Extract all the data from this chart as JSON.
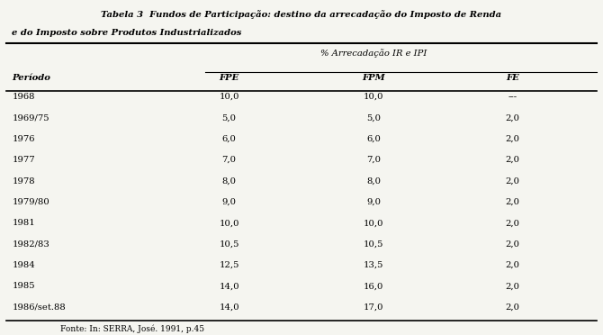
{
  "title_line1": "Tabela 3  Fundos de Participação: destino da arrecadação do Imposto de Renda",
  "title_line2": "e do Imposto sobre Produtos Industrializados",
  "col_header_span": "% Arrecadação IR e IPI",
  "col_headers": [
    "Período",
    "FPE",
    "FPM",
    "FE"
  ],
  "rows": [
    [
      "1968",
      "10,0",
      "10,0",
      "---"
    ],
    [
      "1969/75",
      "5,0",
      "5,0",
      "2,0"
    ],
    [
      "1976",
      "6,0",
      "6,0",
      "2,0"
    ],
    [
      "1977",
      "7,0",
      "7,0",
      "2,0"
    ],
    [
      "1978",
      "8,0",
      "8,0",
      "2,0"
    ],
    [
      "1979/80",
      "9,0",
      "9,0",
      "2,0"
    ],
    [
      "1981",
      "10,0",
      "10,0",
      "2,0"
    ],
    [
      "1982/83",
      "10,5",
      "10,5",
      "2,0"
    ],
    [
      "1984",
      "12,5",
      "13,5",
      "2,0"
    ],
    [
      "1985",
      "14,0",
      "16,0",
      "2,0"
    ],
    [
      "1986/set.88",
      "14,0",
      "17,0",
      "2,0"
    ]
  ],
  "footnote": "Fonte: In: SERRA, José. 1991, p.45",
  "bg_color": "#f5f5f0",
  "text_color": "#000000",
  "title_bold_part": "Tabela 3  Fundos de Participação: destino da arrecadação do Imposto de Renda"
}
